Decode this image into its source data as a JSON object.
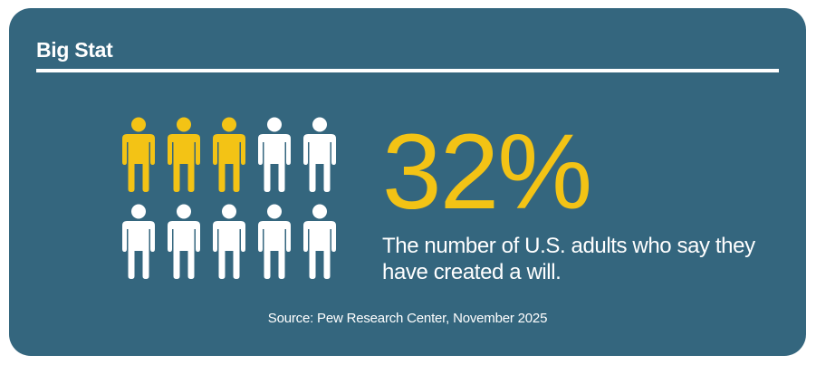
{
  "heading": "Big Stat",
  "colors": {
    "background": "#34667e",
    "highlight": "#f3c315",
    "base": "#ffffff"
  },
  "chart_data": {
    "type": "pictograph",
    "total_icons": 10,
    "highlighted_icons": 3,
    "icon": "person-icon",
    "percent_label": "32%",
    "value": 32,
    "description": "The number of U.S. adults who say they have created a will.",
    "source": "Source: Pew Research Center, November 2025"
  }
}
